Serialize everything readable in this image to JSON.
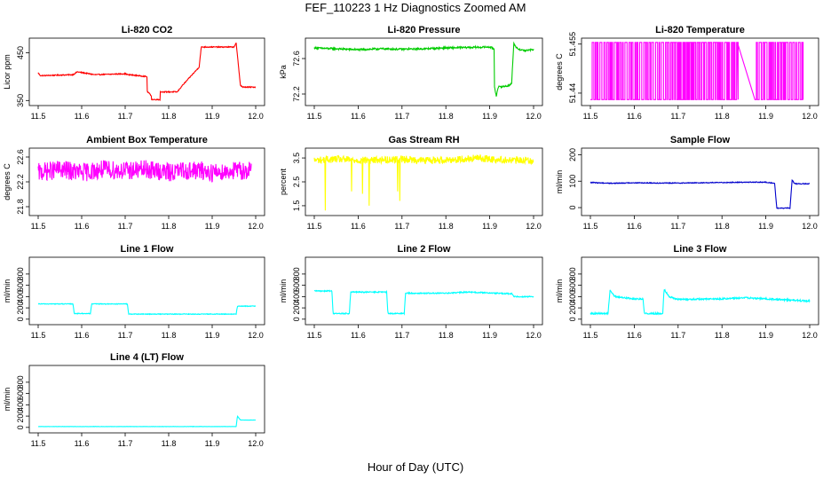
{
  "figure": {
    "title": "FEF_110223  1 Hz Diagnostics Zoomed AM",
    "xlabel": "Hour of Day (UTC)"
  },
  "chart_data": [
    {
      "type": "line",
      "title": "Li-820 CO2",
      "ylabel": "Licor ppm",
      "color": "#ff0000",
      "xlim": [
        11.5,
        12.0
      ],
      "ylim": [
        345,
        475
      ],
      "yticks": [
        350,
        450
      ],
      "xticks": [
        "11.5",
        "11.6",
        "11.7",
        "11.8",
        "11.9",
        "12.0"
      ],
      "noise": 1,
      "x": [
        11.5,
        11.505,
        11.58,
        11.59,
        11.63,
        11.7,
        11.71,
        11.71,
        11.75,
        11.75,
        11.76,
        11.76,
        11.78,
        11.78,
        11.82,
        11.83,
        11.87,
        11.875,
        11.95,
        11.955,
        11.965,
        11.97,
        12.0
      ],
      "y": [
        408,
        402,
        404,
        410,
        404,
        406,
        403,
        404,
        400,
        370,
        360,
        352,
        352,
        368,
        368,
        380,
        420,
        462,
        462,
        470,
        382,
        378,
        378
      ]
    },
    {
      "type": "line",
      "title": "Li-820 Pressure",
      "ylabel": "kPa",
      "color": "#00cc00",
      "xlim": [
        11.5,
        12.0
      ],
      "ylim": [
        72.1,
        72.8
      ],
      "yticks": [
        72.2,
        72.6
      ],
      "xticks": [
        "11.5",
        "11.6",
        "11.7",
        "11.8",
        "11.9",
        "12.0"
      ],
      "noise": 0.01,
      "x": [
        11.5,
        11.52,
        11.55,
        11.6,
        11.65,
        11.7,
        11.75,
        11.8,
        11.85,
        11.9,
        11.91,
        11.91,
        11.915,
        11.92,
        11.94,
        11.945,
        11.95,
        11.955,
        11.96,
        11.97,
        11.98,
        12.0
      ],
      "y": [
        72.72,
        72.715,
        72.71,
        72.7,
        72.71,
        72.705,
        72.71,
        72.72,
        72.725,
        72.73,
        72.71,
        72.3,
        72.18,
        72.28,
        72.29,
        72.3,
        72.32,
        72.78,
        72.72,
        72.7,
        72.69,
        72.7
      ]
    },
    {
      "type": "line",
      "title": "Li-820 Temperature",
      "ylabel": "degrees C",
      "color": "#ff00ff",
      "xlim": [
        11.5,
        12.0
      ],
      "ylim": [
        51.437,
        51.456
      ],
      "yticks": [
        51.44,
        51.455
      ],
      "xticks": [
        "11.5",
        "11.6",
        "11.7",
        "11.8",
        "11.9",
        "12.0"
      ],
      "pattern": "binary",
      "levels": [
        51.438,
        51.4555
      ],
      "x": [
        11.5,
        11.835,
        11.875,
        11.985
      ],
      "y": [
        51.4555,
        51.4555,
        51.438,
        51.4555
      ]
    },
    {
      "type": "line",
      "title": "Ambient Box Temperature",
      "ylabel": "degrees C",
      "color": "#ff00ff",
      "xlim": [
        11.5,
        12.0
      ],
      "ylim": [
        21.7,
        22.7
      ],
      "yticks": [
        21.8,
        22.2,
        22.6
      ],
      "xticks": [
        "11.5",
        "11.6",
        "11.7",
        "11.8",
        "11.9",
        "12.0"
      ],
      "noise": 0.15,
      "x": [
        11.5,
        11.55,
        11.6,
        11.65,
        11.7,
        11.75,
        11.8,
        11.835,
        11.875,
        11.9,
        11.95,
        11.99
      ],
      "y": [
        22.35,
        22.4,
        22.35,
        22.4,
        22.38,
        22.4,
        22.35,
        22.38,
        22.38,
        22.35,
        22.38,
        22.38
      ]
    },
    {
      "type": "line",
      "title": "Gas Stream RH",
      "ylabel": "percent",
      "color": "#ffff00",
      "xlim": [
        11.5,
        12.0
      ],
      "ylim": [
        1.2,
        3.8
      ],
      "yticks": [
        1.5,
        2.5,
        3.5
      ],
      "xticks": [
        "11.5",
        "11.6",
        "11.7",
        "11.8",
        "11.9",
        "12.0"
      ],
      "noise": 0.15,
      "x": [
        11.5,
        11.55,
        11.6,
        11.65,
        11.7,
        11.75,
        11.8,
        11.835,
        11.875,
        11.9,
        11.95,
        12.0
      ],
      "y": [
        3.4,
        3.45,
        3.4,
        3.42,
        3.45,
        3.4,
        3.42,
        3.45,
        3.5,
        3.45,
        3.4,
        3.4
      ],
      "spikes": [
        [
          11.525,
          1.3
        ],
        [
          11.585,
          2.1
        ],
        [
          11.61,
          2.0
        ],
        [
          11.625,
          1.5
        ],
        [
          11.69,
          2.1
        ],
        [
          11.695,
          1.7
        ]
      ]
    },
    {
      "type": "line",
      "title": "Sample Flow",
      "ylabel": "ml/min",
      "color": "#0000cc",
      "xlim": [
        11.5,
        12.0
      ],
      "ylim": [
        -20,
        215
      ],
      "yticks": [
        0,
        100,
        200
      ],
      "xticks": [
        "11.5",
        "11.6",
        "11.7",
        "11.8",
        "11.9",
        "12.0"
      ],
      "noise": 1.5,
      "x": [
        11.5,
        11.55,
        11.6,
        11.65,
        11.7,
        11.75,
        11.8,
        11.85,
        11.9,
        11.92,
        11.925,
        11.955,
        11.96,
        11.965,
        11.97,
        12.0
      ],
      "y": [
        95,
        92,
        94,
        93,
        93,
        94,
        95,
        96,
        96,
        92,
        -2,
        -2,
        105,
        92,
        90,
        90
      ]
    },
    {
      "type": "line",
      "title": "Line 1 Flow",
      "ylabel": "ml/min",
      "color": "#00ffff",
      "xlim": [
        11.5,
        12.0
      ],
      "ylim": [
        -50,
        1050
      ],
      "yticks": [
        0,
        200,
        400,
        600,
        800
      ],
      "xticks": [
        "11.5",
        "11.6",
        "11.7",
        "11.8",
        "11.9",
        "12.0"
      ],
      "noise": 6,
      "x": [
        11.5,
        11.58,
        11.583,
        11.62,
        11.623,
        11.705,
        11.708,
        11.955,
        11.958,
        12.0
      ],
      "y": [
        270,
        270,
        100,
        100,
        270,
        270,
        90,
        90,
        230,
        230
      ]
    },
    {
      "type": "line",
      "title": "Line 2 Flow",
      "ylabel": "ml/min",
      "color": "#00ffff",
      "xlim": [
        11.5,
        12.0
      ],
      "ylim": [
        -50,
        1050
      ],
      "yticks": [
        0,
        200,
        400,
        600,
        800
      ],
      "xticks": [
        "11.5",
        "11.6",
        "11.7",
        "11.8",
        "11.9",
        "12.0"
      ],
      "noise": 10,
      "x": [
        11.5,
        11.54,
        11.543,
        11.58,
        11.583,
        11.665,
        11.668,
        11.705,
        11.708,
        11.8,
        11.85,
        11.95,
        11.955,
        12.0
      ],
      "y": [
        500,
        500,
        100,
        100,
        480,
        480,
        100,
        100,
        460,
        460,
        480,
        450,
        400,
        400
      ]
    },
    {
      "type": "line",
      "title": "Line 3 Flow",
      "ylabel": "ml/min",
      "color": "#00ffff",
      "xlim": [
        11.5,
        12.0
      ],
      "ylim": [
        -50,
        1050
      ],
      "yticks": [
        0,
        200,
        400,
        600,
        800
      ],
      "xticks": [
        "11.5",
        "11.6",
        "11.7",
        "11.8",
        "11.9",
        "12.0"
      ],
      "noise": 14,
      "x": [
        11.5,
        11.54,
        11.545,
        11.555,
        11.6,
        11.62,
        11.623,
        11.665,
        11.668,
        11.68,
        11.7,
        11.8,
        11.85,
        11.95,
        12.0
      ],
      "y": [
        100,
        100,
        520,
        400,
        360,
        360,
        100,
        100,
        530,
        400,
        350,
        360,
        380,
        340,
        320
      ]
    },
    {
      "type": "line",
      "title": "Line 4 (LT) Flow",
      "ylabel": "ml/min",
      "color": "#00ffff",
      "xlim": [
        11.5,
        12.0
      ],
      "ylim": [
        -50,
        1050
      ],
      "yticks": [
        0,
        200,
        400,
        600,
        800
      ],
      "xticks": [
        "11.5",
        "11.6",
        "11.7",
        "11.8",
        "11.9",
        "12.0"
      ],
      "noise": 2,
      "x": [
        11.5,
        11.955,
        11.958,
        11.965,
        12.0
      ],
      "y": [
        15,
        15,
        200,
        130,
        130
      ]
    }
  ]
}
